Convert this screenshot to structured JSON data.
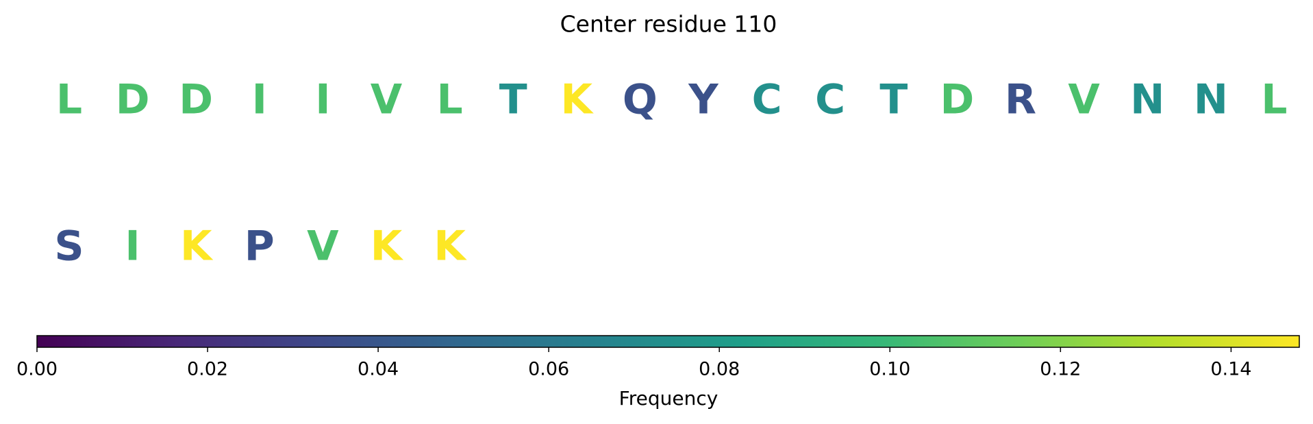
{
  "chart_data": {
    "type": "sequence",
    "title": "Center residue 110",
    "categories": [
      "L",
      "D",
      "D",
      "I",
      "I",
      "V",
      "L",
      "T",
      "K",
      "Q",
      "Y",
      "C",
      "C",
      "T",
      "D",
      "R",
      "V",
      "N",
      "N",
      "L",
      "S",
      "I",
      "K",
      "P",
      "V",
      "K",
      "K"
    ],
    "values": [
      0.105,
      0.105,
      0.105,
      0.105,
      0.105,
      0.105,
      0.105,
      0.074,
      0.148,
      0.037,
      0.037,
      0.074,
      0.074,
      0.074,
      0.105,
      0.037,
      0.105,
      0.074,
      0.074,
      0.105,
      0.037,
      0.105,
      0.148,
      0.037,
      0.105,
      0.148,
      0.148
    ],
    "colormap": "viridis",
    "xlim": [
      0,
      0.148
    ],
    "xticks": [
      {
        "value": 0,
        "label": "0.00"
      },
      0.02,
      0.04,
      0.06,
      0.08,
      {
        "value": 0.1,
        "label": "0.10"
      },
      0.12,
      0.14
    ],
    "xlabel": "Frequency"
  }
}
